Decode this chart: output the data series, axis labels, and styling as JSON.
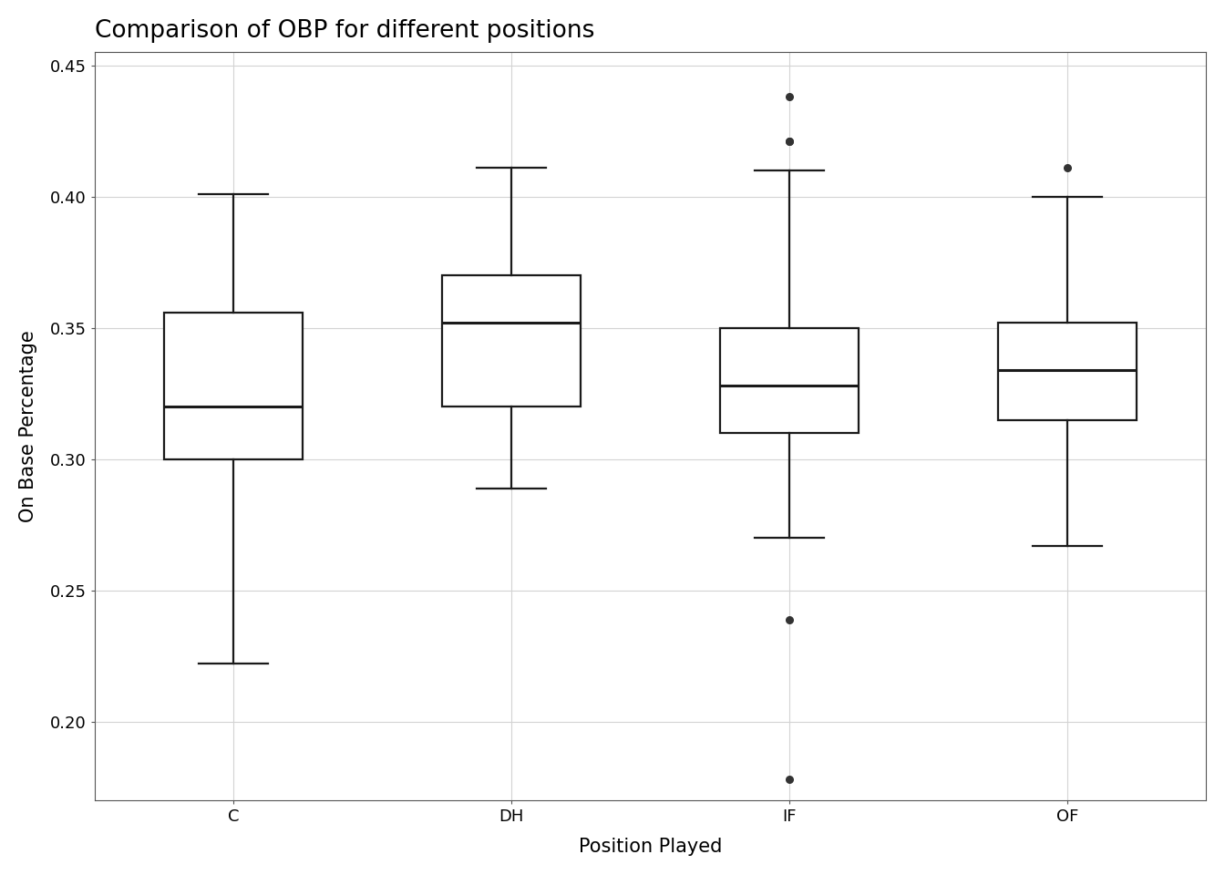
{
  "title": "Comparison of OBP for different positions",
  "xlabel": "Position Played",
  "ylabel": "On Base Percentage",
  "ylim": [
    0.17,
    0.455
  ],
  "yticks": [
    0.2,
    0.25,
    0.3,
    0.35,
    0.4,
    0.45
  ],
  "background_color": "#ffffff",
  "grid_color": "#d3d3d3",
  "positions": [
    "C",
    "DH",
    "IF",
    "OF"
  ],
  "boxplot_stats": {
    "C": {
      "whislo": 0.222,
      "q1": 0.3,
      "med": 0.32,
      "q3": 0.356,
      "whishi": 0.401,
      "fliers": []
    },
    "DH": {
      "whislo": 0.289,
      "q1": 0.32,
      "med": 0.352,
      "q3": 0.37,
      "whishi": 0.411,
      "fliers": []
    },
    "IF": {
      "whislo": 0.27,
      "q1": 0.31,
      "med": 0.328,
      "q3": 0.35,
      "whishi": 0.41,
      "fliers": [
        0.178,
        0.239,
        0.421,
        0.421,
        0.438
      ]
    },
    "OF": {
      "whislo": 0.267,
      "q1": 0.315,
      "med": 0.334,
      "q3": 0.352,
      "whishi": 0.4,
      "fliers": [
        0.411
      ]
    }
  },
  "box_facecolor": "#ffffff",
  "box_edgecolor": "#1a1a1a",
  "median_color": "#1a1a1a",
  "whisker_color": "#1a1a1a",
  "cap_color": "#1a1a1a",
  "flier_color": "#333333",
  "line_width": 1.6,
  "median_linewidth": 2.2,
  "box_width": 0.5,
  "title_fontsize": 19,
  "label_fontsize": 15,
  "tick_fontsize": 13,
  "flier_markersize": 6.5,
  "spine_color": "#555555"
}
